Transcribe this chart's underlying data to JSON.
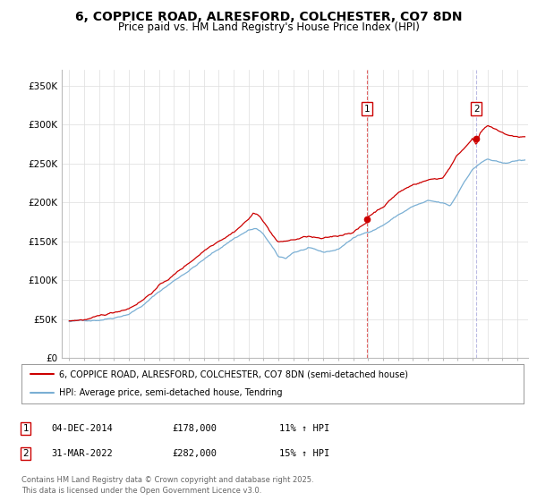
{
  "title": "6, COPPICE ROAD, ALRESFORD, COLCHESTER, CO7 8DN",
  "subtitle": "Price paid vs. HM Land Registry's House Price Index (HPI)",
  "title_fontsize": 10,
  "subtitle_fontsize": 8.5,
  "ylim": [
    0,
    370000
  ],
  "yticks": [
    0,
    50000,
    100000,
    150000,
    200000,
    250000,
    300000,
    350000
  ],
  "ytick_labels": [
    "£0",
    "£50K",
    "£100K",
    "£150K",
    "£200K",
    "£250K",
    "£300K",
    "£350K"
  ],
  "xlim_start": 1994.5,
  "xlim_end": 2025.7,
  "xticks": [
    1995,
    1996,
    1997,
    1998,
    1999,
    2000,
    2001,
    2002,
    2003,
    2004,
    2005,
    2006,
    2007,
    2008,
    2009,
    2010,
    2011,
    2012,
    2013,
    2014,
    2015,
    2016,
    2017,
    2018,
    2019,
    2020,
    2021,
    2022,
    2023,
    2024,
    2025
  ],
  "price_color": "#cc0000",
  "hpi_color": "#7aafd4",
  "vline1_x": 2014.92,
  "vline2_x": 2022.25,
  "marker1_x": 2014.92,
  "marker1_y": 178000,
  "marker2_x": 2022.25,
  "marker2_y": 282000,
  "annotation1_label": "1",
  "annotation2_label": "2",
  "legend_line1": "6, COPPICE ROAD, ALRESFORD, COLCHESTER, CO7 8DN (semi-detached house)",
  "legend_line2": "HPI: Average price, semi-detached house, Tendring",
  "table_row1": [
    "1",
    "04-DEC-2014",
    "£178,000",
    "11% ↑ HPI"
  ],
  "table_row2": [
    "2",
    "31-MAR-2022",
    "£282,000",
    "15% ↑ HPI"
  ],
  "footnote": "Contains HM Land Registry data © Crown copyright and database right 2025.\nThis data is licensed under the Open Government Licence v3.0.",
  "background_color": "#ffffff",
  "grid_color": "#dddddd"
}
